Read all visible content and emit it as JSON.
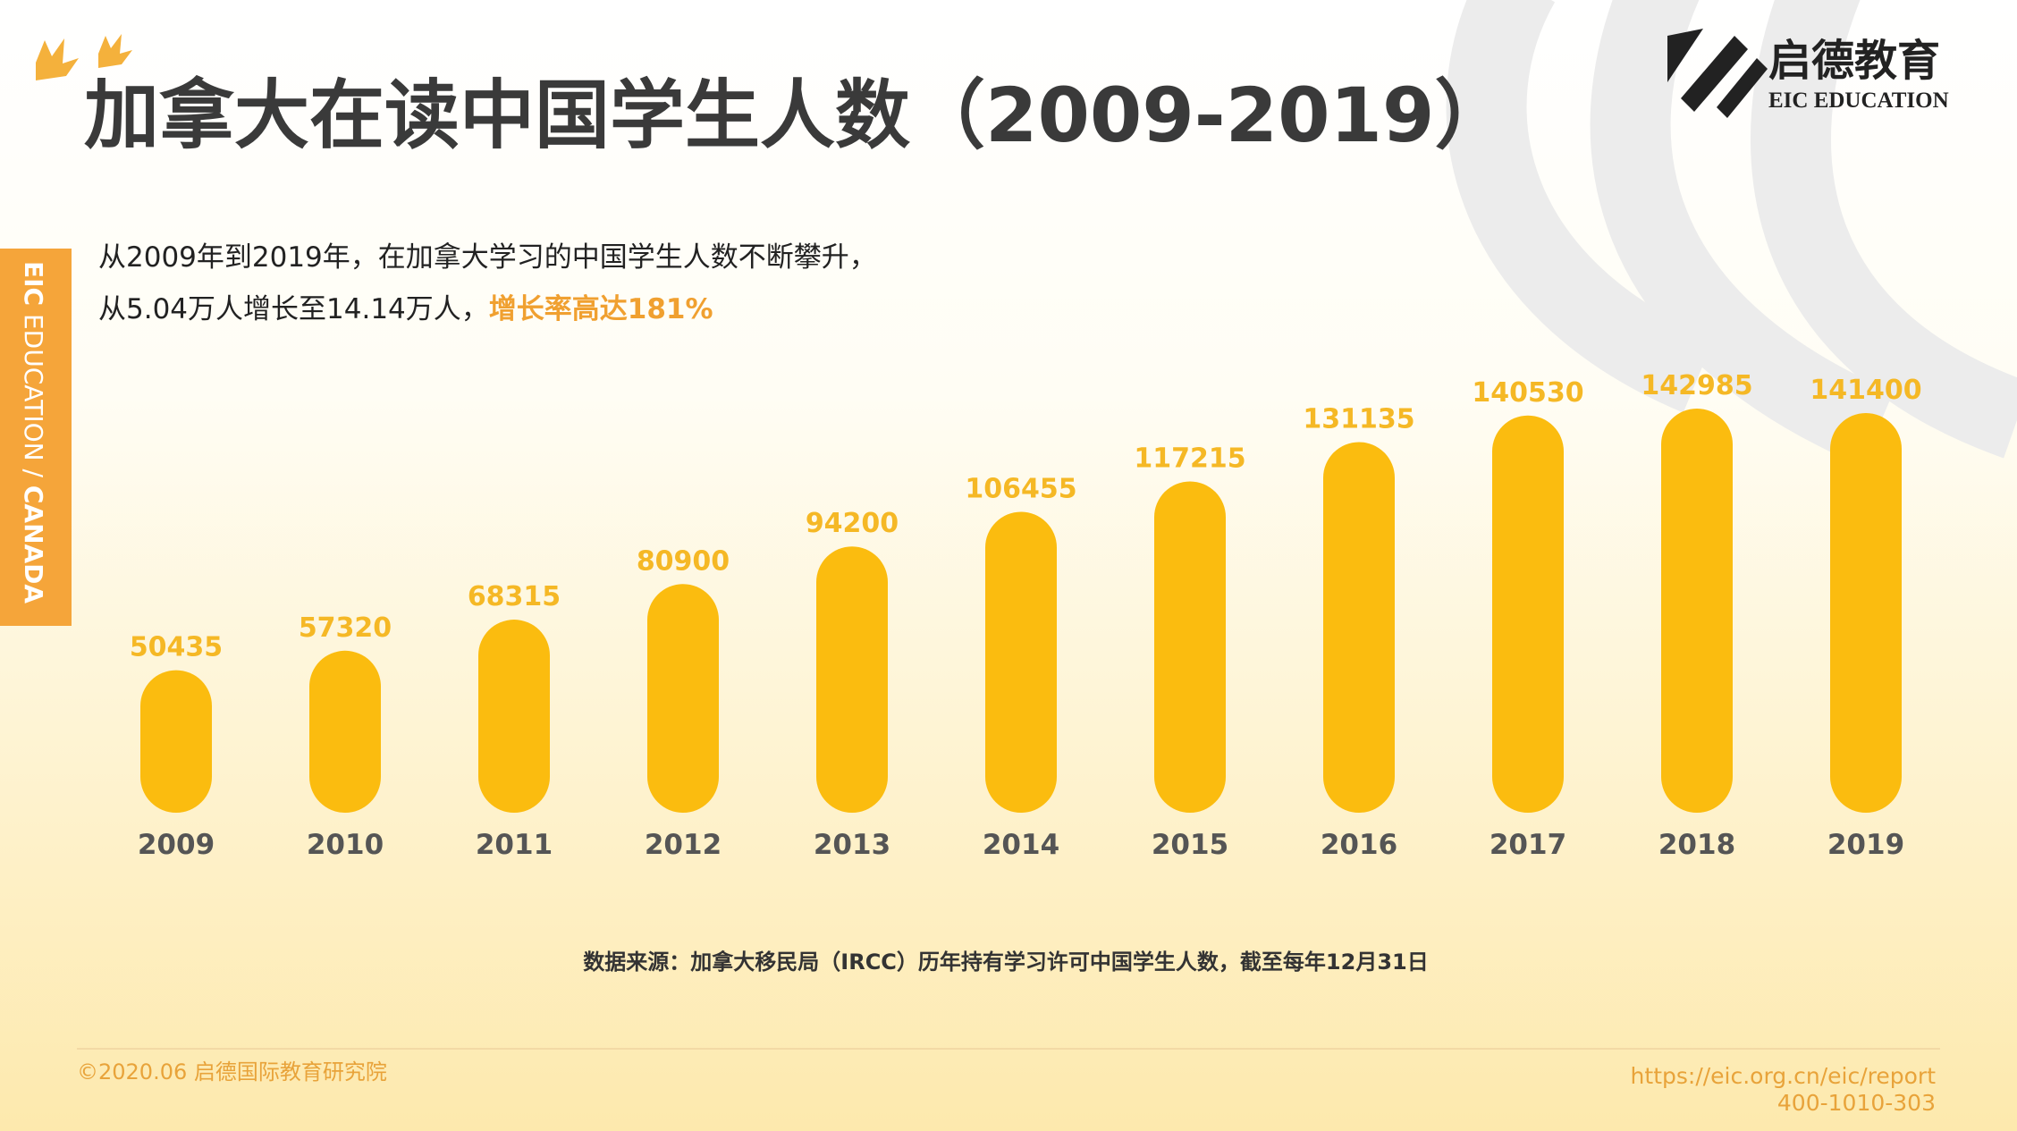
{
  "header": {
    "title": "加拿大在读中国学生人数（2009-2019）",
    "logo_cn": "启德教育",
    "logo_en": "EIC EDUCATION"
  },
  "side_label": {
    "part1": "EIC",
    "part2": " EDUCATION / ",
    "part3": "CANADA"
  },
  "intro": {
    "line1": "从2009年到2019年，在加拿大学习的中国学生人数不断攀升，",
    "line2": "从5.04万人增长至14.14万人，",
    "highlight": "增长率高达181%"
  },
  "chart_data": {
    "type": "bar",
    "color": "#fbbc0f",
    "label_color": "#f5b825",
    "categories": [
      "2009",
      "2010",
      "2011",
      "2012",
      "2013",
      "2014",
      "2015",
      "2016",
      "2017",
      "2018",
      "2019"
    ],
    "values": [
      50435,
      57320,
      68315,
      80900,
      94200,
      106455,
      117215,
      131135,
      140530,
      142985,
      141400
    ]
  },
  "source": "数据来源：加拿大移民局（IRCC）历年持有学习许可中国学生人数，截至每年12月31日",
  "footer": {
    "copyright": "©2020.06 启德国际教育研究院",
    "url": "https://eic.org.cn/eic/report",
    "phone": "400-1010-303"
  }
}
